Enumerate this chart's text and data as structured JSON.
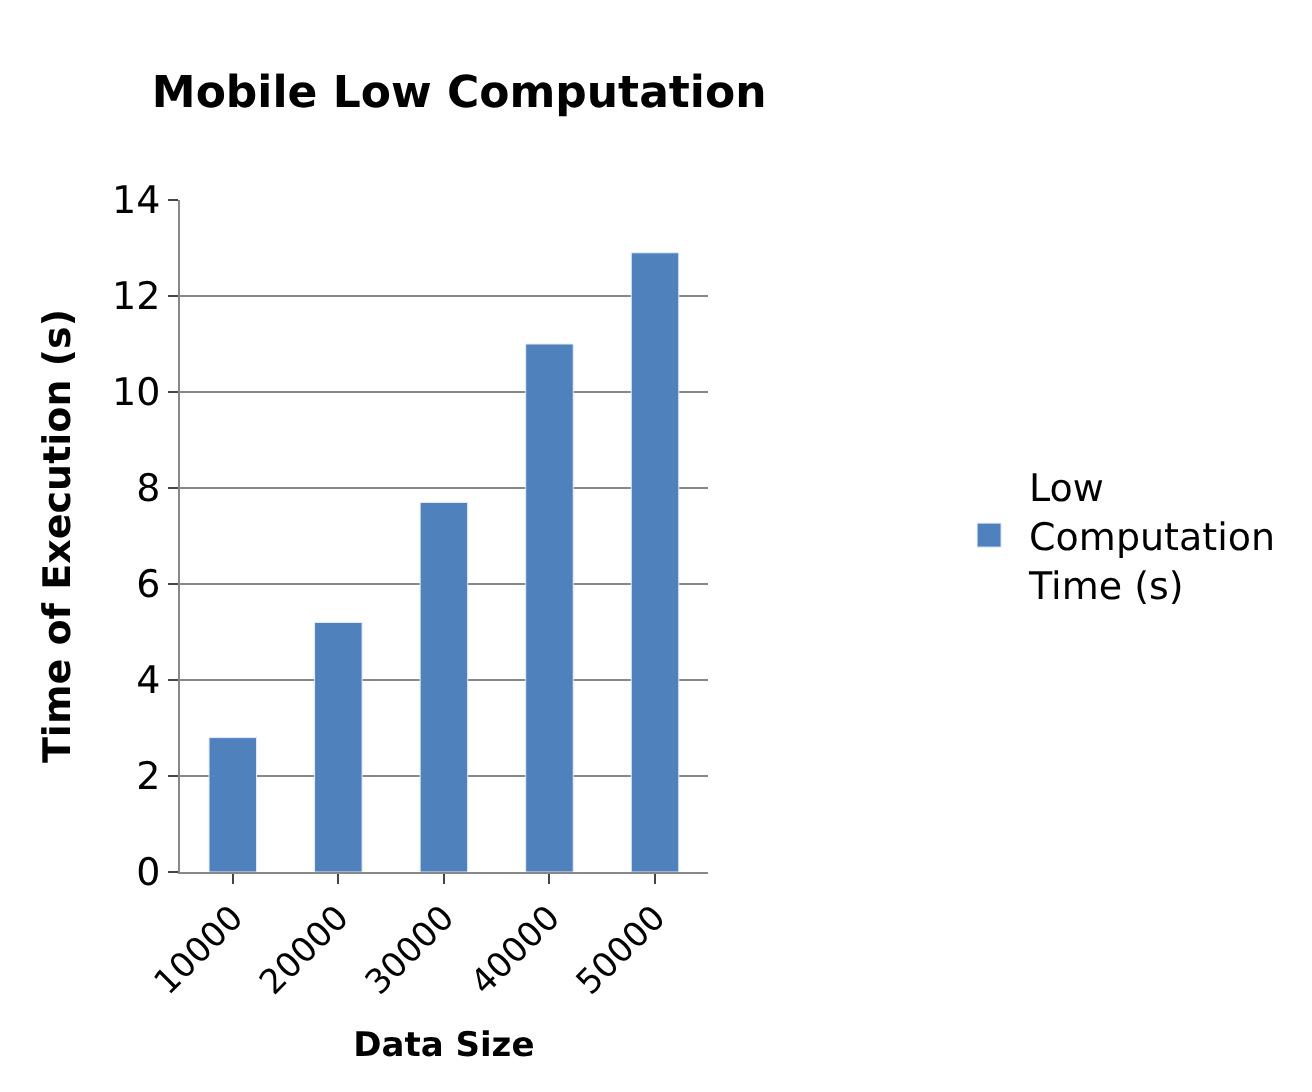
{
  "chart_data": {
    "type": "bar",
    "title": "Mobile Low Computation",
    "xlabel": "Data Size",
    "ylabel": "Time of Execution (s)",
    "categories": [
      "10000",
      "20000",
      "30000",
      "40000",
      "50000"
    ],
    "series": [
      {
        "name": "Low Computation Time (s)",
        "color": "#4f81bd",
        "values": [
          2.8,
          5.2,
          7.7,
          11,
          12.9
        ]
      }
    ],
    "ylim": [
      0,
      14
    ],
    "yticks": [
      0,
      2,
      4,
      6,
      8,
      10,
      12,
      14
    ],
    "grid": "y",
    "legend": "right"
  }
}
